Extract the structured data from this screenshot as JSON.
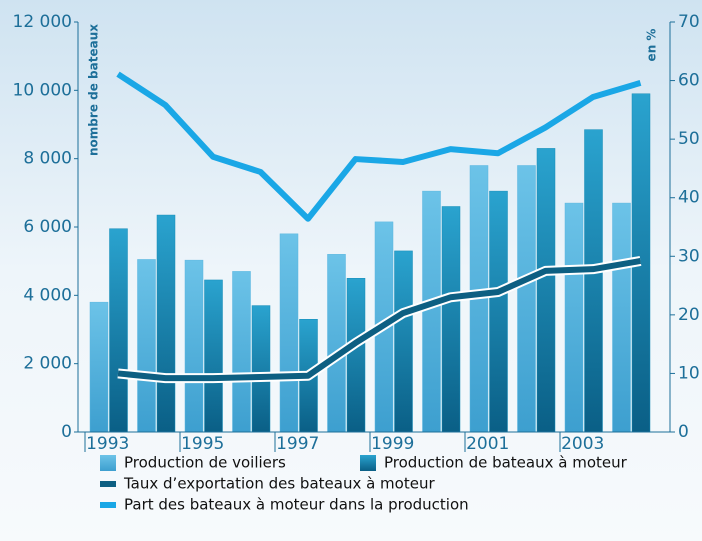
{
  "chart_data": {
    "type": "bar",
    "categories": [
      "1993",
      null,
      "1995",
      null,
      "1997",
      null,
      "1999",
      null,
      "2001",
      null,
      "2003",
      null
    ],
    "ylabel": "nombre de bateaux",
    "y2label": "en %",
    "ylim": [
      0,
      12000
    ],
    "yticks": [
      0,
      {
        "value": 2000,
        "label": "2 000"
      },
      {
        "value": 4000,
        "label": "4 000"
      },
      {
        "value": 6000,
        "label": "6 000"
      },
      {
        "value": 8000,
        "label": "8 000"
      },
      {
        "value": 10000,
        "label": "10 000"
      },
      {
        "value": 12000,
        "label": "12 000"
      }
    ],
    "y2lim": [
      0,
      70
    ],
    "y2ticks": [
      0,
      10,
      20,
      30,
      40,
      50,
      60,
      70
    ],
    "series": [
      {
        "name": "Production de voiliers",
        "type": "bar",
        "color": "#5ab6df",
        "values": [
          3800,
          5050,
          5030,
          4700,
          5800,
          5200,
          6150,
          7050,
          7800,
          7800,
          6700,
          6700
        ]
      },
      {
        "name": "Production de bateaux à moteur",
        "type": "bar",
        "color": "#168db8",
        "values": [
          5950,
          6350,
          4450,
          3700,
          3300,
          4500,
          5300,
          6600,
          7050,
          8300,
          8850,
          9900
        ]
      },
      {
        "name": "Taux d’exportation des bateaux à moteur",
        "type": "line",
        "axis": "y2",
        "color": "#0d5f82",
        "values": [
          10,
          9.2,
          9.2,
          9.4,
          9.6,
          15.2,
          20.3,
          23,
          23.9,
          27.5,
          27.8,
          29.2
        ]
      },
      {
        "name": "Part des bateaux à moteur dans la production",
        "type": "line",
        "axis": "y2",
        "color": "#1aa7e6",
        "values": [
          61.1,
          55.8,
          47,
          44.4,
          36.4,
          46.6,
          46.1,
          48.3,
          47.6,
          52,
          57.2,
          59.6
        ]
      }
    ]
  }
}
